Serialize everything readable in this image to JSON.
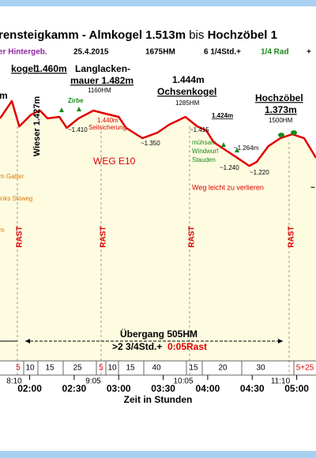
{
  "chart_data": {
    "type": "line",
    "title": [
      "rensteigkamm - Almkogel 1.513m",
      "bis",
      "Hochzöbel 1"
    ],
    "subtitle": [
      "er Hintergeb.",
      "25.4.2015",
      "1675HM",
      "6 1/4Std.+",
      "1/4 Rad",
      "+"
    ],
    "x": [
      100,
      108,
      113,
      121,
      127,
      132,
      140,
      145,
      153,
      163,
      169,
      180,
      185,
      196,
      206,
      214,
      225,
      233,
      239,
      244,
      252,
      260,
      268,
      273,
      281,
      289,
      297,
      305,
      313
    ],
    "values": [
      1445,
      1527,
      1407,
      1463,
      1482,
      1445,
      1452,
      1400,
      1445,
      1482,
      1471,
      1452,
      1400,
      1351,
      1377,
      1415,
      1452,
      1407,
      1388,
      1332,
      1295,
      1258,
      1220,
      1239,
      1314,
      1351,
      1370,
      1351,
      1258
    ],
    "color": "#e00000",
    "fill": "#fdfbe0",
    "xlim": [
      100,
      313
    ],
    "ylim": [
      300,
      1800
    ],
    "xticks": [
      {
        "value": 120,
        "label": "02:00"
      },
      {
        "value": 150,
        "label": "02:30"
      },
      {
        "value": 180,
        "label": "03:00"
      },
      {
        "value": 210,
        "label": "03:30"
      },
      {
        "value": 240,
        "label": "04:00"
      },
      {
        "value": 270,
        "label": "04:30"
      },
      {
        "value": 300,
        "label": "05:00"
      }
    ],
    "xlabel": "Zeit in Stunden",
    "annotations": [
      "kogel",
      "1.460m",
      "Langlacken-",
      "mauer 1.482m",
      "1160HM",
      "1.444m",
      "Ochsenkogel",
      "1285HM",
      "Hochzöbel",
      "1.373m",
      "1500HM",
      "1.424m",
      "~1.264m",
      "m",
      "Zirbe",
      "Wieser 1.427m",
      "~1.410",
      "1.440m",
      "Seilsicherung",
      "~1.350",
      "~1.415",
      "mühsam",
      "Windwurf",
      "Stauden",
      "~1.240",
      "~1.220",
      "WEG E10",
      "m Gatter",
      "inks Skiweg",
      "Weg leicht zu verlieren",
      "m",
      "~"
    ],
    "rests": [
      "RAST",
      "RAST",
      "RAST",
      "RAST"
    ],
    "transfer": [
      "Übergang 505HM",
      ">2 3/4Std.+",
      "0:05Rast"
    ],
    "durations": [
      "5",
      "10",
      "15",
      "25",
      "5",
      "10",
      "15",
      "40",
      "15",
      "20",
      "30",
      "5+25"
    ],
    "time_marks": [
      "8:10",
      "9:05",
      "10:05",
      "11:10"
    ]
  }
}
